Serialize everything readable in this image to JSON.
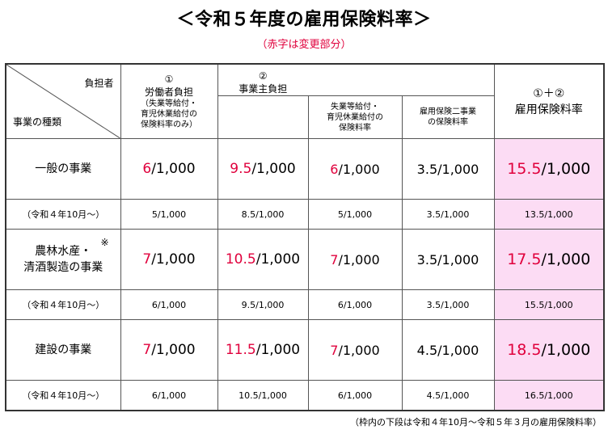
{
  "title": "＜令和５年度の雇用保険料率＞",
  "subtitle": "（赤字は変更部分）",
  "colors": {
    "accent_red": "#e0003c",
    "total_bg": "#fcdcf4"
  },
  "header": {
    "corner_top": "負担者",
    "corner_bottom": "事業の種類",
    "worker": {
      "num": "①",
      "label": "労働者負担",
      "note1": "（失業等給付・",
      "note2": "育児休業給付の",
      "note3": "保険料率のみ）"
    },
    "employer": {
      "num": "②",
      "label": "事業主負担"
    },
    "employer_sub1": {
      "line1": "失業等給付・",
      "line2": "育児休業給付の",
      "line3": "保険料率"
    },
    "employer_sub2": {
      "line1": "雇用保険二事業",
      "line2": "の保険料率"
    },
    "total": {
      "num": "①＋②",
      "label": "雇用保険料率"
    }
  },
  "rows": [
    {
      "category_line1": "一般の事業",
      "category_line2": "",
      "mark": "",
      "worker_red": "6",
      "worker_rest": "/1,000",
      "employer_red": "9.5",
      "employer_rest": "/1,000",
      "sub1_red": "6",
      "sub1_rest": "/1,000",
      "sub2": "3.5/1,000",
      "total_red": "15.5",
      "total_rest": "/1,000",
      "prev_label": "（令和４年10月～）",
      "prev": [
        "5/1,000",
        "8.5/1,000",
        "5/1,000",
        "3.5/1,000",
        "13.5/1,000"
      ]
    },
    {
      "category_line1": "農林水産・",
      "category_line2": "清酒製造の事業",
      "mark": "※",
      "worker_red": "7",
      "worker_rest": "/1,000",
      "employer_red": "10.5",
      "employer_rest": "/1,000",
      "sub1_red": "7",
      "sub1_rest": "/1,000",
      "sub2": "3.5/1,000",
      "total_red": "17.5",
      "total_rest": "/1,000",
      "prev_label": "（令和４年10月～）",
      "prev": [
        "6/1,000",
        "9.5/1,000",
        "6/1,000",
        "3.5/1,000",
        "15.5/1,000"
      ]
    },
    {
      "category_line1": "建設の事業",
      "category_line2": "",
      "mark": "",
      "worker_red": "7",
      "worker_rest": "/1,000",
      "employer_red": "11.5",
      "employer_rest": "/1,000",
      "sub1_red": "7",
      "sub1_rest": "/1,000",
      "sub2": "4.5/1,000",
      "total_red": "18.5",
      "total_rest": "/1,000",
      "prev_label": "（令和４年10月～）",
      "prev": [
        "6/1,000",
        "10.5/1,000",
        "6/1,000",
        "4.5/1,000",
        "16.5/1,000"
      ]
    }
  ],
  "footnote": "（枠内の下段は令和４年10月～令和５年３月の雇用保険料率）"
}
